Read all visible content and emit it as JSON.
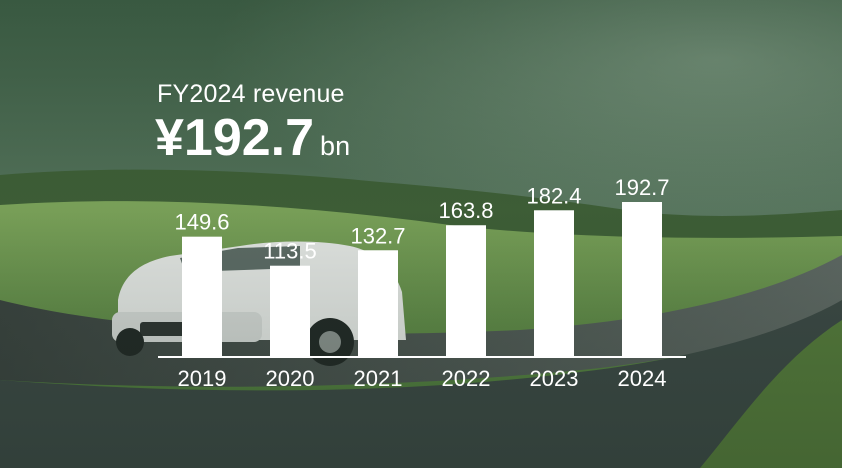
{
  "header": {
    "kicker": "FY2024 revenue",
    "value": "¥192.7",
    "unit": "bn"
  },
  "background": {
    "icon": "car-on-country-road-photo",
    "sky": "#4e6e55",
    "hills": "#6f9455",
    "road": "#4a5450"
  },
  "chart_data": {
    "type": "bar",
    "categories": [
      "2019",
      "2020",
      "2021",
      "2022",
      "2023",
      "2024"
    ],
    "values": [
      149.6,
      113.5,
      132.7,
      163.8,
      182.4,
      192.7
    ],
    "value_labels": [
      "149.6",
      "113.5",
      "132.7",
      "163.8",
      "182.4",
      "192.7"
    ],
    "title": "FY2024 revenue",
    "xlabel": "",
    "ylabel": "",
    "ylim": [
      0,
      200
    ],
    "grid": false,
    "legend": "none",
    "bar_color": "#ffffff",
    "label_color": "#ffffff"
  }
}
